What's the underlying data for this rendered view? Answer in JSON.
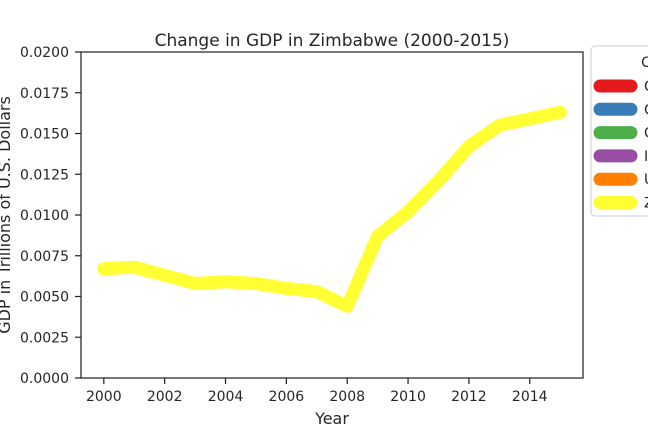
{
  "chart_data": {
    "type": "line",
    "title": "Change in GDP in Zimbabwe (2000-2015)",
    "xlabel": "Year",
    "ylabel": "GDP in Trillions of U.S. Dollars",
    "xlim": [
      1999.25,
      2015.75
    ],
    "ylim": [
      0,
      0.02
    ],
    "x_ticks": [
      2000,
      2002,
      2004,
      2006,
      2008,
      2010,
      2012,
      2014
    ],
    "y_ticks": [
      "0.0000",
      "0.0025",
      "0.0050",
      "0.0075",
      "0.0100",
      "0.0125",
      "0.0150",
      "0.0175",
      "0.0200"
    ],
    "grid": false,
    "legend": {
      "placement": "outside-right",
      "title": "C",
      "entries": [
        {
          "label": "C",
          "color": "#e41a1c"
        },
        {
          "label": "C",
          "color": "#377eb8"
        },
        {
          "label": "C",
          "color": "#4daf4a"
        },
        {
          "label": "I",
          "color": "#984ea3"
        },
        {
          "label": "U",
          "color": "#ff7f00"
        },
        {
          "label": "Z",
          "color": "#ffff33"
        }
      ]
    },
    "series": [
      {
        "color": "#ffff33",
        "x": [
          2000,
          2001,
          2002,
          2003,
          2004,
          2005,
          2006,
          2007,
          2008,
          2009,
          2010,
          2011,
          2012,
          2013,
          2014,
          2015
        ],
        "values": [
          0.0067,
          0.0068,
          0.0063,
          0.0058,
          0.0059,
          0.0058,
          0.0055,
          0.0053,
          0.0044,
          0.0087,
          0.0102,
          0.0121,
          0.0142,
          0.0155,
          0.0159,
          0.0163
        ]
      }
    ]
  }
}
